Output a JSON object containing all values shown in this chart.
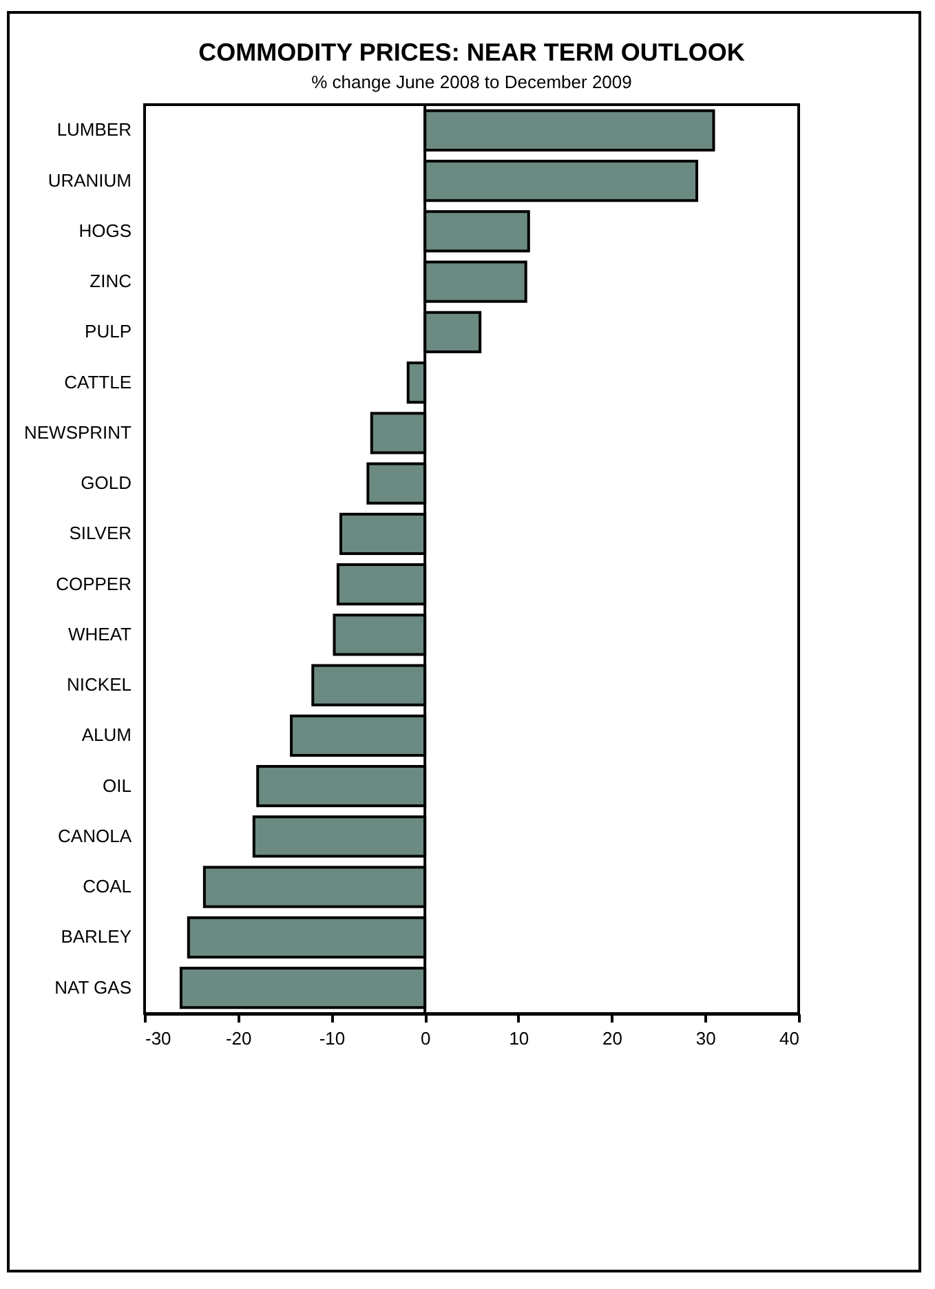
{
  "chart_data": {
    "type": "bar",
    "orientation": "horizontal",
    "title": "COMMODITY PRICES: NEAR TERM OUTLOOK",
    "subtitle": "% change June 2008 to December 2009",
    "categories": [
      "LUMBER",
      "URANIUM",
      "HOGS",
      "ZINC",
      "PULP",
      "CATTLE",
      "NEWSPRINT",
      "GOLD",
      "SILVER",
      "COPPER",
      "WHEAT",
      "NICKEL",
      "ALUM",
      "OIL",
      "CANOLA",
      "COAL",
      "BARLEY",
      "NAT GAS"
    ],
    "values": [
      30.9,
      29.1,
      11.1,
      10.8,
      5.9,
      -1.8,
      -5.7,
      -6.1,
      -9.0,
      -9.3,
      -9.7,
      -12.0,
      -14.3,
      -17.9,
      -18.3,
      -23.6,
      -25.3,
      -26.1
    ],
    "color": "#6b8a82",
    "xlim": [
      -30,
      40
    ],
    "xticks": [
      -30,
      -20,
      -10,
      0,
      10,
      20,
      30,
      40
    ],
    "grid": false,
    "ref_lines": [
      {
        "axis": "x",
        "value": 0,
        "color": "#000000"
      }
    ]
  }
}
